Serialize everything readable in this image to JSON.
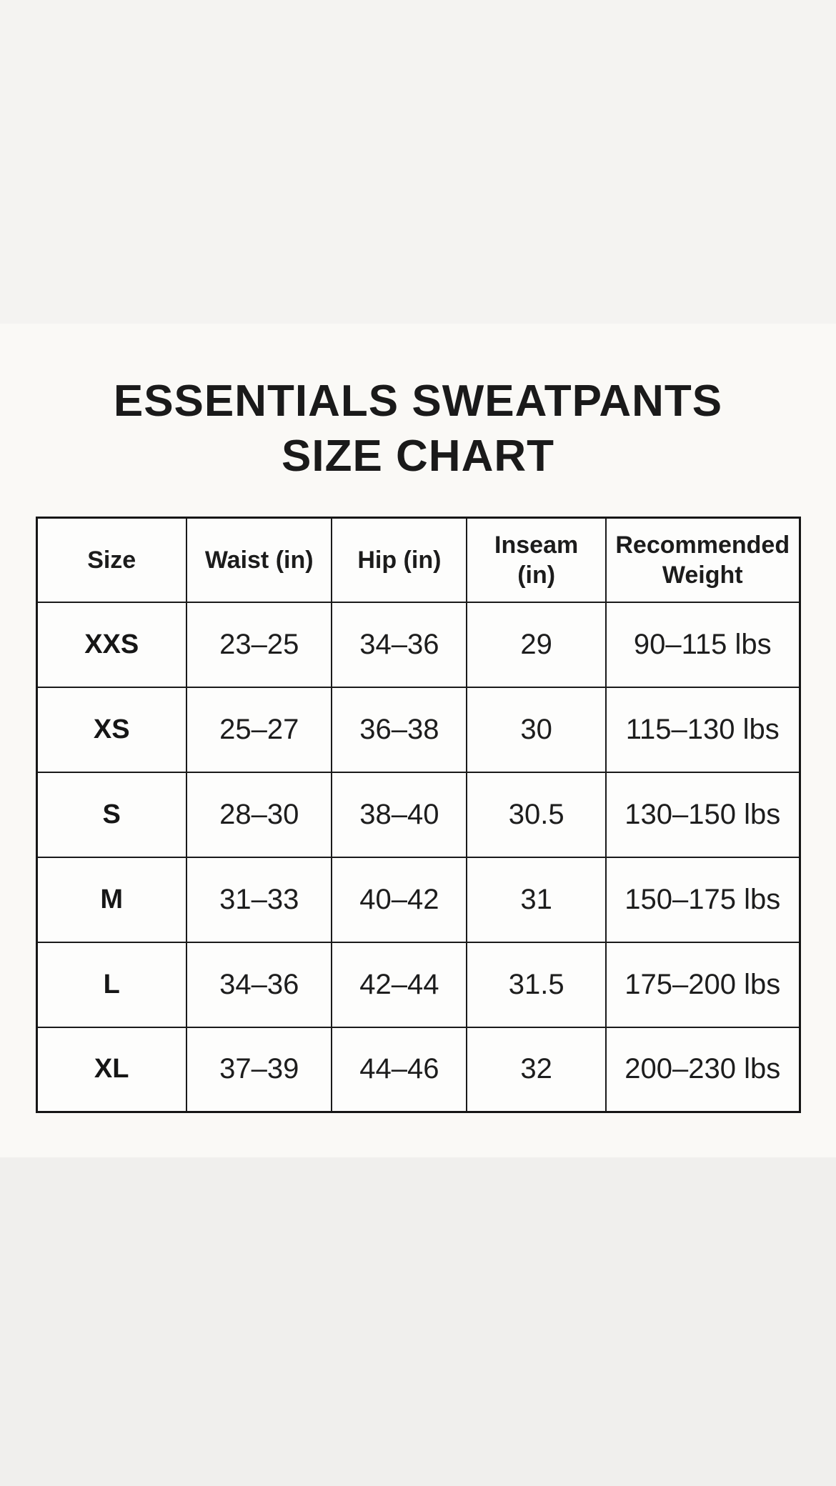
{
  "title": {
    "line1": "ESSENTIALS SWEATPANTS",
    "line2": "SIZE CHART"
  },
  "colors": {
    "band_top": "#f4f3f1",
    "band_main": "#faf9f6",
    "band_bottom": "#f0efed",
    "table_border": "#161616",
    "cell_background": "#fdfdfc",
    "text": "#1d1d1d"
  },
  "chart_data": {
    "type": "table",
    "title": "ESSENTIALS SWEATPANTS SIZE CHART",
    "columns": [
      "Size",
      "Waist (in)",
      "Hip (in)",
      "Inseam (in)",
      "Recommended Weight"
    ],
    "rows": [
      [
        "XXS",
        "23–25",
        "34–36",
        "29",
        "90–115 lbs"
      ],
      [
        "XS",
        "25–27",
        "36–38",
        "30",
        "115–130 lbs"
      ],
      [
        "S",
        "28–30",
        "38–40",
        "30.5",
        "130–150 lbs"
      ],
      [
        "M",
        "31–33",
        "40–42",
        "31",
        "150–175 lbs"
      ],
      [
        "L",
        "34–36",
        "42–44",
        "31.5",
        "175–200 lbs"
      ],
      [
        "XL",
        "37–39",
        "44–46",
        "32",
        "200–230 lbs"
      ]
    ]
  }
}
